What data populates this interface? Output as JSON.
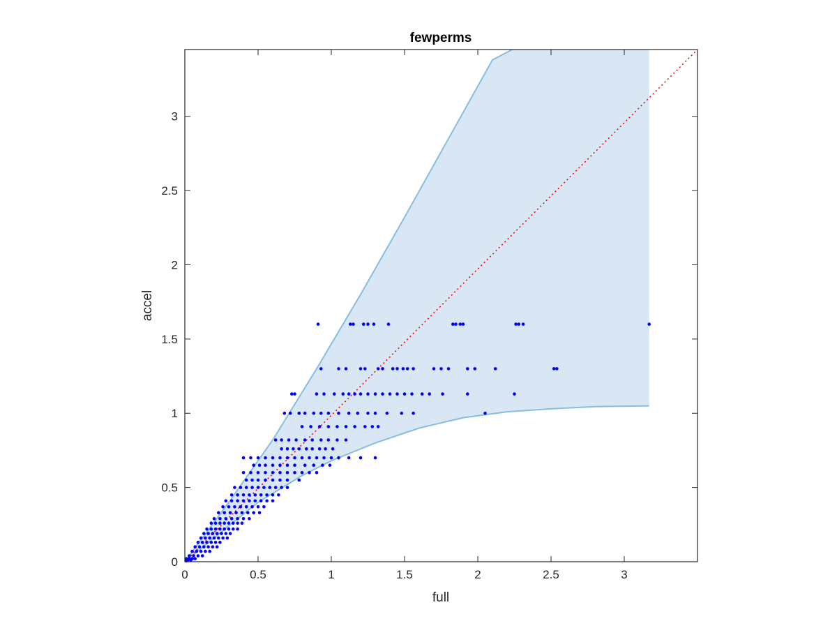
{
  "chart_data": {
    "type": "scatter",
    "title": "fewperms",
    "xlabel": "full",
    "ylabel": "accel",
    "xlim": [
      0,
      3.5
    ],
    "ylim": [
      0,
      3.45
    ],
    "xticks": [
      0,
      0.5,
      1,
      1.5,
      2,
      2.5,
      3
    ],
    "yticks": [
      0,
      0.5,
      1,
      1.5,
      2,
      2.5,
      3
    ],
    "xtick_labels": [
      "0",
      "0.5",
      "1",
      "1.5",
      "2",
      "2.5",
      "3"
    ],
    "ytick_labels": [
      "0",
      "0.5",
      "1",
      "1.5",
      "2",
      "2.5",
      "3"
    ],
    "grid": false,
    "band": {
      "color": "#d8e7f3",
      "edge_color": "#86bde0",
      "upper": [
        [
          0,
          0
        ],
        [
          0.3,
          0.4
        ],
        [
          0.6,
          0.82
        ],
        [
          0.9,
          1.3
        ],
        [
          1.2,
          1.8
        ],
        [
          1.5,
          2.32
        ],
        [
          1.8,
          2.85
        ],
        [
          2.1,
          3.38
        ],
        [
          2.235,
          3.63
        ],
        [
          3.17,
          3.63
        ]
      ],
      "lower": [
        [
          0,
          0
        ],
        [
          0.3,
          0.24
        ],
        [
          0.5,
          0.4
        ],
        [
          0.8,
          0.58
        ],
        [
          1.0,
          0.68
        ],
        [
          1.3,
          0.8
        ],
        [
          1.6,
          0.9
        ],
        [
          1.9,
          0.97
        ],
        [
          2.2,
          1.01
        ],
        [
          2.5,
          1.03
        ],
        [
          2.8,
          1.045
        ],
        [
          3.17,
          1.05
        ]
      ]
    },
    "reference_line": {
      "from": [
        0,
        0
      ],
      "to": [
        3.5,
        3.5
      ],
      "color": "#ff0000",
      "style": "dotted"
    },
    "marker_color": "#0000ff",
    "points": [
      [
        0.91,
        1.6
      ],
      [
        1.13,
        1.6
      ],
      [
        1.15,
        1.6
      ],
      [
        1.22,
        1.6
      ],
      [
        1.25,
        1.6
      ],
      [
        1.29,
        1.6
      ],
      [
        1.39,
        1.6
      ],
      [
        1.83,
        1.6
      ],
      [
        1.85,
        1.6
      ],
      [
        1.88,
        1.6
      ],
      [
        1.9,
        1.6
      ],
      [
        2.26,
        1.6
      ],
      [
        2.28,
        1.6
      ],
      [
        2.31,
        1.6
      ],
      [
        3.17,
        1.6
      ],
      [
        0.93,
        1.3
      ],
      [
        1.05,
        1.3
      ],
      [
        1.1,
        1.3
      ],
      [
        1.2,
        1.3
      ],
      [
        1.23,
        1.3
      ],
      [
        1.32,
        1.3
      ],
      [
        1.35,
        1.3
      ],
      [
        1.42,
        1.3
      ],
      [
        1.45,
        1.3
      ],
      [
        1.49,
        1.3
      ],
      [
        1.52,
        1.3
      ],
      [
        1.56,
        1.3
      ],
      [
        1.7,
        1.3
      ],
      [
        1.75,
        1.3
      ],
      [
        1.8,
        1.3
      ],
      [
        1.93,
        1.3
      ],
      [
        1.98,
        1.3
      ],
      [
        2.12,
        1.3
      ],
      [
        2.52,
        1.3
      ],
      [
        2.54,
        1.3
      ],
      [
        0.73,
        1.13
      ],
      [
        0.75,
        1.13
      ],
      [
        0.9,
        1.13
      ],
      [
        0.95,
        1.13
      ],
      [
        1.02,
        1.13
      ],
      [
        1.08,
        1.13
      ],
      [
        1.12,
        1.13
      ],
      [
        1.16,
        1.13
      ],
      [
        1.2,
        1.13
      ],
      [
        1.25,
        1.13
      ],
      [
        1.3,
        1.13
      ],
      [
        1.35,
        1.13
      ],
      [
        1.4,
        1.13
      ],
      [
        1.45,
        1.13
      ],
      [
        1.5,
        1.13
      ],
      [
        1.55,
        1.13
      ],
      [
        1.62,
        1.13
      ],
      [
        1.67,
        1.13
      ],
      [
        1.76,
        1.13
      ],
      [
        1.93,
        1.13
      ],
      [
        2.25,
        1.13
      ],
      [
        0.68,
        1.0
      ],
      [
        0.72,
        1.0
      ],
      [
        0.78,
        1.0
      ],
      [
        0.82,
        1.0
      ],
      [
        0.88,
        1.0
      ],
      [
        0.93,
        1.0
      ],
      [
        0.98,
        1.0
      ],
      [
        1.05,
        1.0
      ],
      [
        1.12,
        1.0
      ],
      [
        1.18,
        1.0
      ],
      [
        1.25,
        1.0
      ],
      [
        1.3,
        1.0
      ],
      [
        1.38,
        1.0
      ],
      [
        1.48,
        1.0
      ],
      [
        1.56,
        1.0
      ],
      [
        2.05,
        1.0
      ],
      [
        0.8,
        0.91
      ],
      [
        0.86,
        0.91
      ],
      [
        0.92,
        0.91
      ],
      [
        0.98,
        0.91
      ],
      [
        1.04,
        0.91
      ],
      [
        1.1,
        0.91
      ],
      [
        1.16,
        0.91
      ],
      [
        1.23,
        0.91
      ],
      [
        1.28,
        0.91
      ],
      [
        1.32,
        0.91
      ],
      [
        0.62,
        0.82
      ],
      [
        0.66,
        0.82
      ],
      [
        0.71,
        0.82
      ],
      [
        0.76,
        0.82
      ],
      [
        0.82,
        0.82
      ],
      [
        0.87,
        0.82
      ],
      [
        0.93,
        0.82
      ],
      [
        0.98,
        0.82
      ],
      [
        1.04,
        0.82
      ],
      [
        1.1,
        0.82
      ],
      [
        0.66,
        0.76
      ],
      [
        0.7,
        0.76
      ],
      [
        0.74,
        0.76
      ],
      [
        0.78,
        0.76
      ],
      [
        0.83,
        0.76
      ],
      [
        0.87,
        0.76
      ],
      [
        0.92,
        0.76
      ],
      [
        0.96,
        0.76
      ],
      [
        1.01,
        0.76
      ],
      [
        0.4,
        0.7
      ],
      [
        0.45,
        0.7
      ],
      [
        0.5,
        0.7
      ],
      [
        0.55,
        0.7
      ],
      [
        0.6,
        0.7
      ],
      [
        0.65,
        0.7
      ],
      [
        0.7,
        0.7
      ],
      [
        0.75,
        0.7
      ],
      [
        0.8,
        0.7
      ],
      [
        0.85,
        0.7
      ],
      [
        0.9,
        0.7
      ],
      [
        0.95,
        0.7
      ],
      [
        1.0,
        0.7
      ],
      [
        1.05,
        0.7
      ],
      [
        1.12,
        0.7
      ],
      [
        1.2,
        0.7
      ],
      [
        1.3,
        0.7
      ],
      [
        0.47,
        0.65
      ],
      [
        0.51,
        0.65
      ],
      [
        0.55,
        0.65
      ],
      [
        0.6,
        0.65
      ],
      [
        0.65,
        0.65
      ],
      [
        0.7,
        0.65
      ],
      [
        0.75,
        0.65
      ],
      [
        0.82,
        0.65
      ],
      [
        0.88,
        0.65
      ],
      [
        0.94,
        0.65
      ],
      [
        0.99,
        0.65
      ],
      [
        0.4,
        0.6
      ],
      [
        0.45,
        0.6
      ],
      [
        0.5,
        0.6
      ],
      [
        0.55,
        0.6
      ],
      [
        0.6,
        0.6
      ],
      [
        0.65,
        0.6
      ],
      [
        0.7,
        0.6
      ],
      [
        0.75,
        0.6
      ],
      [
        0.8,
        0.6
      ],
      [
        0.85,
        0.6
      ],
      [
        0.9,
        0.6
      ],
      [
        0.42,
        0.55
      ],
      [
        0.46,
        0.55
      ],
      [
        0.5,
        0.55
      ],
      [
        0.55,
        0.55
      ],
      [
        0.6,
        0.55
      ],
      [
        0.65,
        0.55
      ],
      [
        0.7,
        0.55
      ],
      [
        0.78,
        0.55
      ],
      [
        0.34,
        0.5
      ],
      [
        0.38,
        0.5
      ],
      [
        0.42,
        0.5
      ],
      [
        0.46,
        0.5
      ],
      [
        0.5,
        0.5
      ],
      [
        0.54,
        0.5
      ],
      [
        0.58,
        0.5
      ],
      [
        0.62,
        0.5
      ],
      [
        0.66,
        0.5
      ],
      [
        0.7,
        0.5
      ],
      [
        0.32,
        0.45
      ],
      [
        0.36,
        0.45
      ],
      [
        0.4,
        0.45
      ],
      [
        0.44,
        0.45
      ],
      [
        0.48,
        0.45
      ],
      [
        0.52,
        0.45
      ],
      [
        0.56,
        0.45
      ],
      [
        0.6,
        0.45
      ],
      [
        0.64,
        0.45
      ],
      [
        0.28,
        0.41
      ],
      [
        0.32,
        0.41
      ],
      [
        0.36,
        0.41
      ],
      [
        0.4,
        0.41
      ],
      [
        0.44,
        0.41
      ],
      [
        0.48,
        0.41
      ],
      [
        0.52,
        0.41
      ],
      [
        0.56,
        0.41
      ],
      [
        0.6,
        0.41
      ],
      [
        0.26,
        0.37
      ],
      [
        0.3,
        0.37
      ],
      [
        0.34,
        0.37
      ],
      [
        0.38,
        0.37
      ],
      [
        0.42,
        0.37
      ],
      [
        0.46,
        0.37
      ],
      [
        0.5,
        0.37
      ],
      [
        0.54,
        0.37
      ],
      [
        0.23,
        0.33
      ],
      [
        0.27,
        0.33
      ],
      [
        0.31,
        0.33
      ],
      [
        0.35,
        0.33
      ],
      [
        0.39,
        0.33
      ],
      [
        0.43,
        0.33
      ],
      [
        0.47,
        0.33
      ],
      [
        0.51,
        0.33
      ],
      [
        0.2,
        0.29
      ],
      [
        0.24,
        0.29
      ],
      [
        0.28,
        0.29
      ],
      [
        0.32,
        0.29
      ],
      [
        0.36,
        0.29
      ],
      [
        0.4,
        0.29
      ],
      [
        0.44,
        0.29
      ],
      [
        0.18,
        0.26
      ],
      [
        0.21,
        0.26
      ],
      [
        0.24,
        0.26
      ],
      [
        0.27,
        0.26
      ],
      [
        0.3,
        0.26
      ],
      [
        0.33,
        0.26
      ],
      [
        0.36,
        0.26
      ],
      [
        0.39,
        0.26
      ],
      [
        0.15,
        0.22
      ],
      [
        0.18,
        0.22
      ],
      [
        0.21,
        0.22
      ],
      [
        0.24,
        0.22
      ],
      [
        0.27,
        0.22
      ],
      [
        0.3,
        0.22
      ],
      [
        0.33,
        0.22
      ],
      [
        0.36,
        0.22
      ],
      [
        0.13,
        0.19
      ],
      [
        0.16,
        0.19
      ],
      [
        0.19,
        0.19
      ],
      [
        0.22,
        0.19
      ],
      [
        0.25,
        0.19
      ],
      [
        0.28,
        0.19
      ],
      [
        0.31,
        0.19
      ],
      [
        0.11,
        0.16
      ],
      [
        0.14,
        0.16
      ],
      [
        0.17,
        0.16
      ],
      [
        0.2,
        0.16
      ],
      [
        0.23,
        0.16
      ],
      [
        0.26,
        0.16
      ],
      [
        0.29,
        0.16
      ],
      [
        0.09,
        0.13
      ],
      [
        0.12,
        0.13
      ],
      [
        0.15,
        0.13
      ],
      [
        0.18,
        0.13
      ],
      [
        0.21,
        0.13
      ],
      [
        0.24,
        0.13
      ],
      [
        0.07,
        0.1
      ],
      [
        0.1,
        0.1
      ],
      [
        0.13,
        0.1
      ],
      [
        0.16,
        0.1
      ],
      [
        0.19,
        0.1
      ],
      [
        0.22,
        0.1
      ],
      [
        0.05,
        0.07
      ],
      [
        0.08,
        0.07
      ],
      [
        0.11,
        0.07
      ],
      [
        0.14,
        0.07
      ],
      [
        0.17,
        0.07
      ],
      [
        0.03,
        0.04
      ],
      [
        0.06,
        0.04
      ],
      [
        0.09,
        0.04
      ],
      [
        0.12,
        0.04
      ],
      [
        0.01,
        0.02
      ],
      [
        0.03,
        0.02
      ],
      [
        0.05,
        0.02
      ],
      [
        0.07,
        0.02
      ],
      [
        0.02,
        0.01
      ],
      [
        0.01,
        0.005
      ],
      [
        0.04,
        0.01
      ]
    ]
  }
}
